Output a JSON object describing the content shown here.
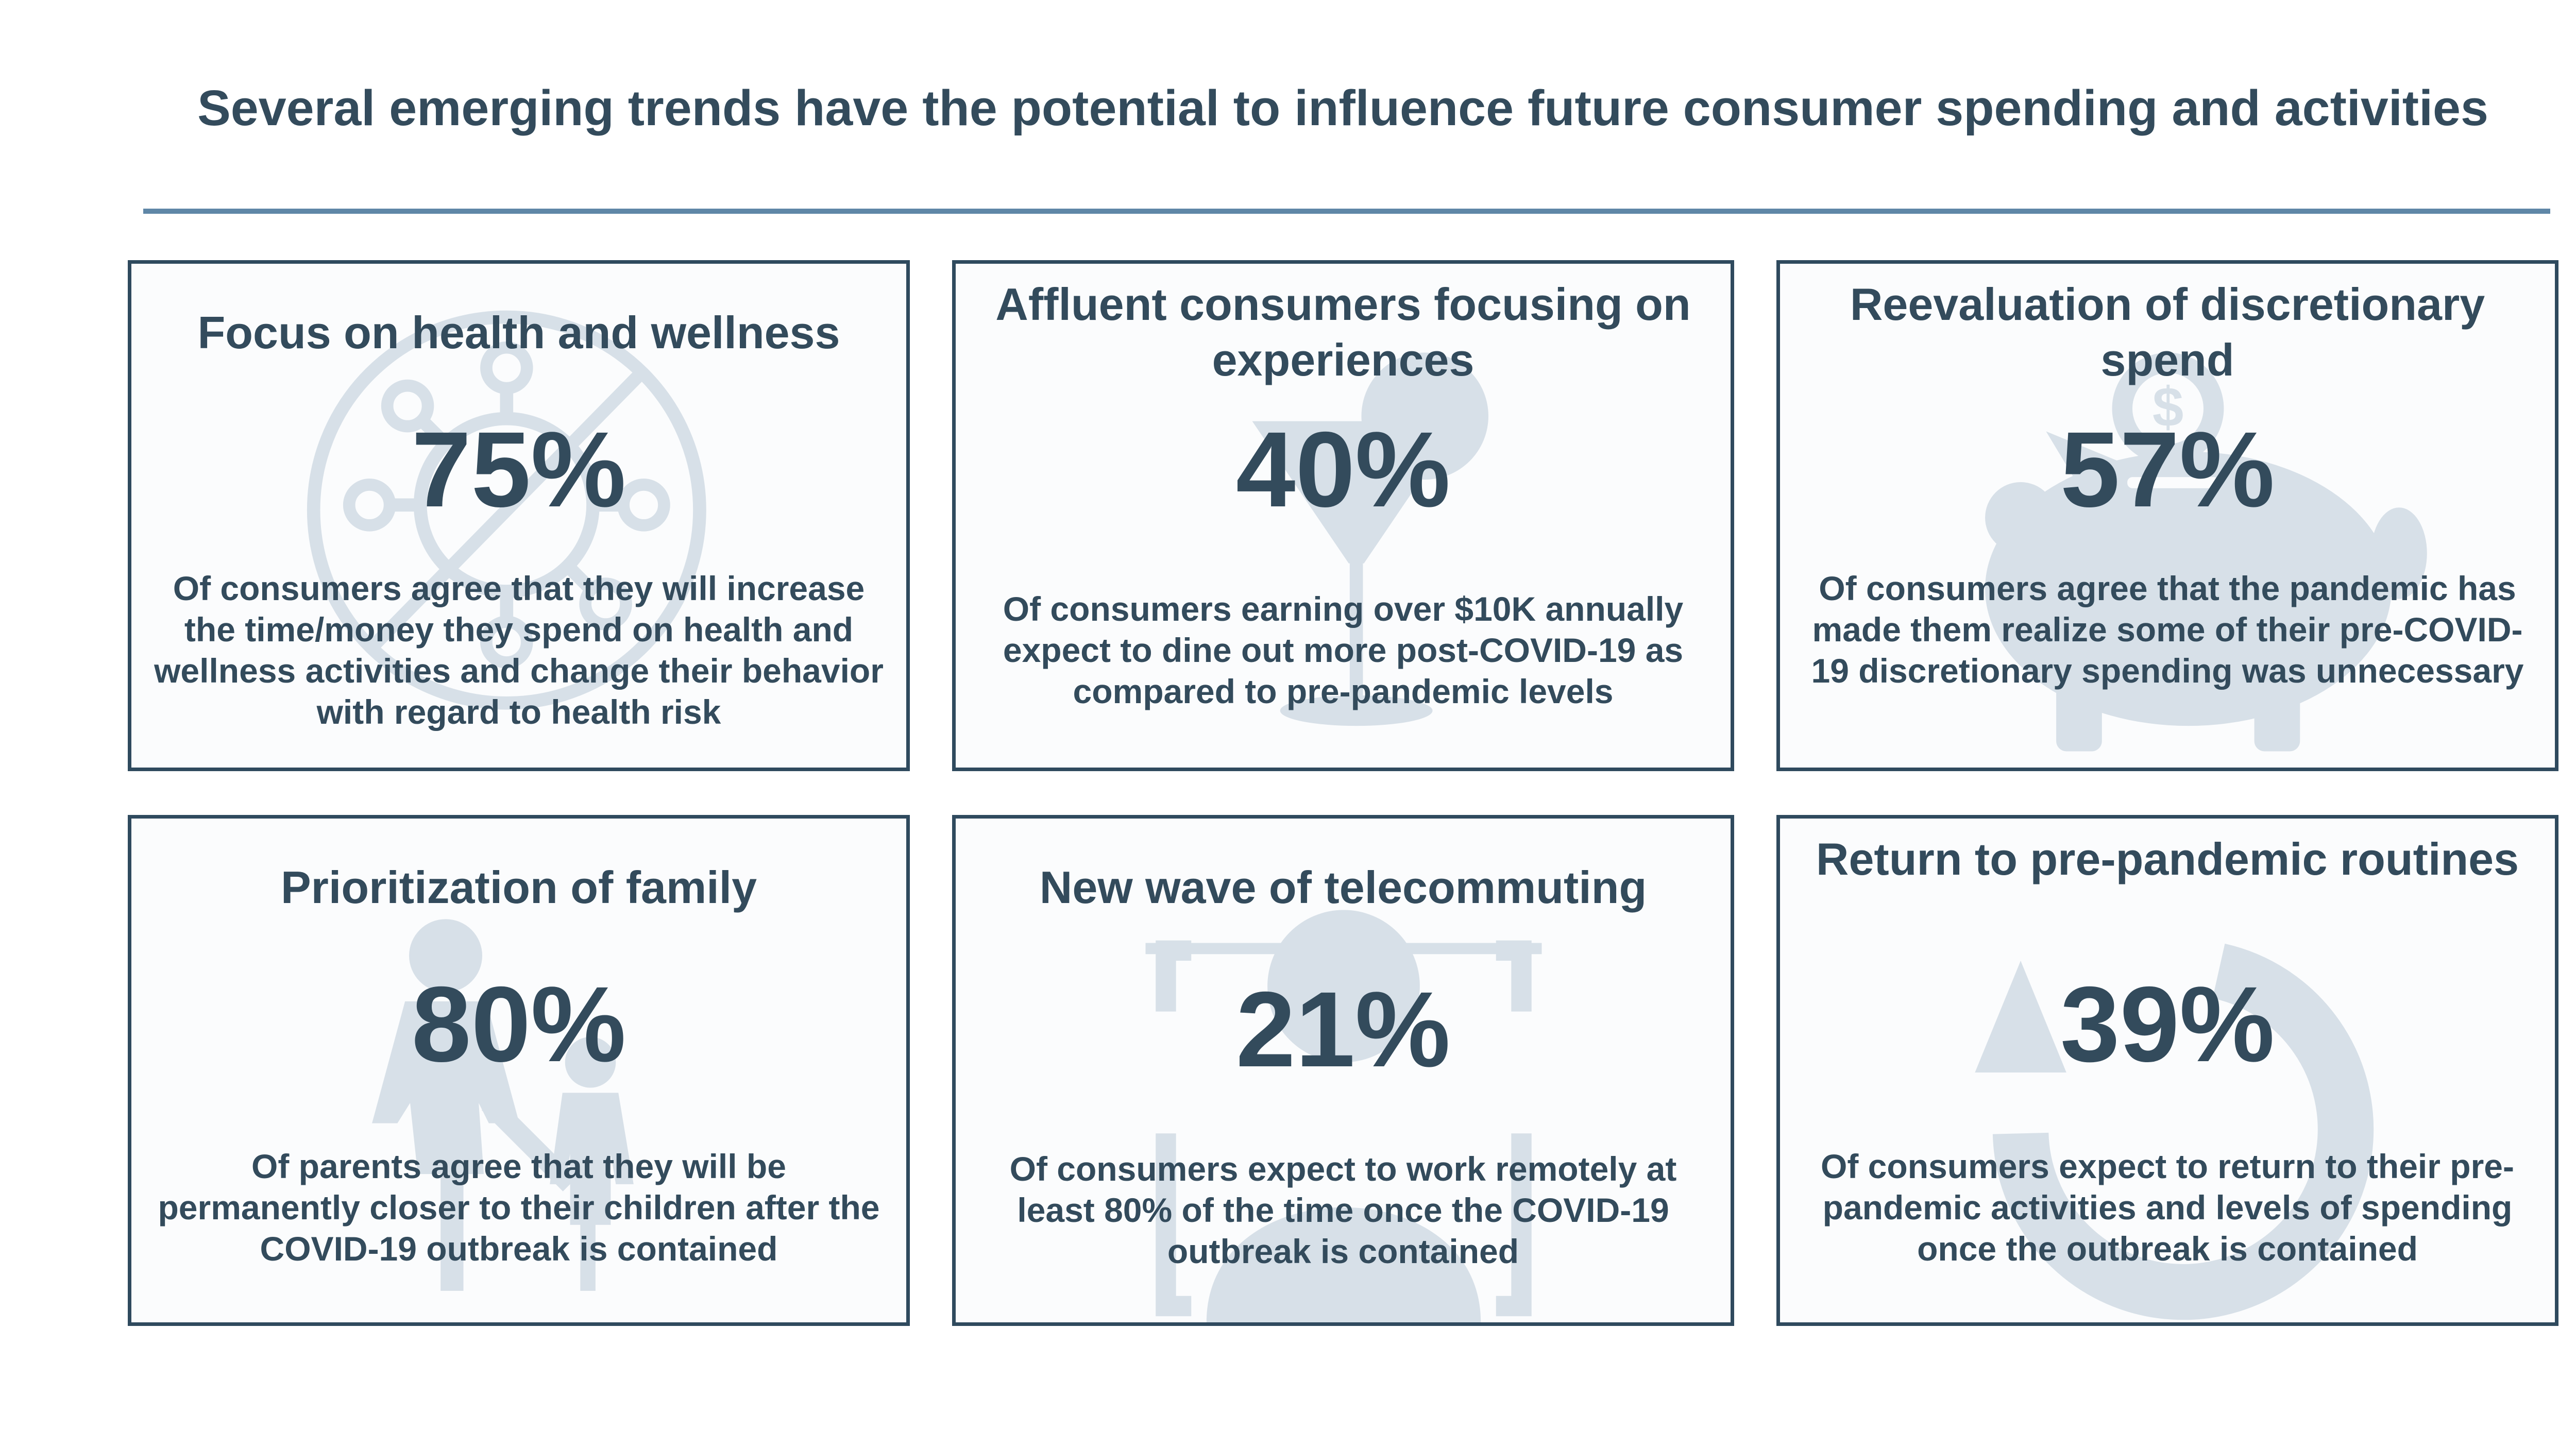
{
  "title": "Several emerging trends have the potential to influence future consumer spending and activities",
  "colors": {
    "text": "#334b5c",
    "rule": "#5f87a7",
    "border": "#2f4a5e",
    "watermark": "#d7e0e8"
  },
  "cards": [
    {
      "heading": "Focus on health and wellness",
      "stat": "75%",
      "description": "Of consumers agree that they will increase the time/money they spend on health and wellness activities and change their behavior with regard to health risk",
      "icon": "virus-prohibited-icon"
    },
    {
      "heading": "Affluent consumers focusing on experiences",
      "stat": "40%",
      "description": "Of consumers earning over $10K annually expect to dine out more post-COVID-19 as compared to pre-pandemic levels",
      "icon": "cocktail-glass-icon"
    },
    {
      "heading": "Reevaluation of discretionary spend",
      "stat": "57%",
      "description": "Of consumers agree that the pandemic has made them realize some of their pre-COVID-19 discretionary spending was unnecessary",
      "icon": "piggy-bank-coin-icon"
    },
    {
      "heading": "Prioritization of family",
      "stat": "80%",
      "description": "Of parents agree that they will be permanently closer to their children after the COVID-19 outbreak is contained",
      "icon": "parent-child-icon"
    },
    {
      "heading": "New wave of telecommuting",
      "stat": "21%",
      "description": "Of consumers expect to work remotely at least 80% of the time once the COVID-19 outbreak is contained",
      "icon": "user-frame-icon"
    },
    {
      "heading": "Return to pre-pandemic routines",
      "stat": "39%",
      "description": "Of consumers expect to return to their pre-pandemic activities and levels of spending once the outbreak is contained",
      "icon": "circular-arrow-icon"
    }
  ]
}
